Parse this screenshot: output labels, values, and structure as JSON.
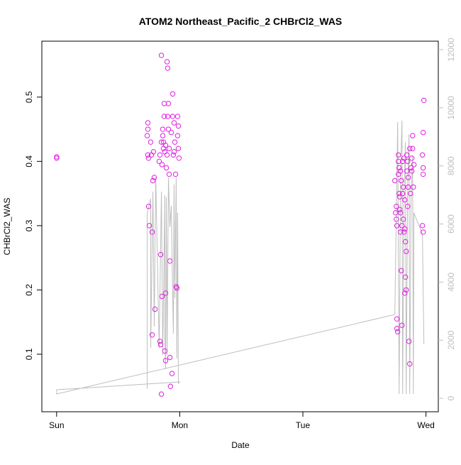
{
  "chart_data": {
    "type": "scatter",
    "title": "ATOM2 Northeast_Pacific_2 CHBrCl2_WAS",
    "xlabel": "Date",
    "ylabel": "CHBrCl2_WAS",
    "xlim": [
      -0.12,
      3.1
    ],
    "ylim": [
      0.0105,
      0.587
    ],
    "y2lim": [
      -464,
      12293
    ],
    "xticks": [
      {
        "value": 0,
        "label": "Sun"
      },
      {
        "value": 1,
        "label": "Mon"
      },
      {
        "value": 2,
        "label": "Tue"
      },
      {
        "value": 3,
        "label": "Wed"
      }
    ],
    "yticks": [
      0.1,
      0.2,
      0.3,
      0.4,
      0.5
    ],
    "y2ticks": [
      0,
      2000,
      4000,
      6000,
      8000,
      10000,
      12000
    ],
    "y2color": "#bebebe",
    "series": [
      {
        "color": "#e020e0",
        "x": [
          0,
          0,
          0.741,
          0.741,
          0.736,
          0.741,
          0.747,
          0.747,
          0.753,
          0.764,
          0.77,
          0.776,
          0.776,
          0.782,
          0.787,
          0.793,
          0.799,
          0.839,
          0.845,
          0.851,
          0.851,
          0.856,
          0.862,
          0.862,
          0.868,
          0.868,
          0.874,
          0.874,
          0.879,
          0.879,
          0.885,
          0.885,
          0.891,
          0.897,
          0.897,
          0.902,
          0.902,
          0.908,
          0.908,
          0.914,
          0.914,
          0.92,
          0.92,
          0.925,
          0.931,
          0.937,
          0.943,
          0.943,
          0.948,
          0.954,
          0.954,
          0.96,
          0.966,
          0.971,
          0.977,
          0.983,
          0.983,
          0.989,
          0.989,
          0.994,
          0.845,
          0.839,
          0.851,
          0.856,
          0.833,
          0.885,
          2.747,
          2.753,
          2.759,
          2.764,
          2.759,
          2.764,
          2.764,
          2.77,
          2.776,
          2.776,
          2.782,
          2.782,
          2.787,
          2.787,
          2.793,
          2.793,
          2.799,
          2.799,
          2.805,
          2.805,
          2.81,
          2.816,
          2.816,
          2.822,
          2.822,
          2.828,
          2.828,
          2.833,
          2.833,
          2.839,
          2.839,
          2.845,
          2.845,
          2.851,
          2.856,
          2.856,
          2.862,
          2.868,
          2.868,
          2.874,
          2.879,
          2.885,
          2.885,
          2.891,
          2.891,
          2.897,
          2.902,
          2.971,
          2.971,
          2.977,
          2.977,
          2.977,
          2.983,
          2.977,
          2.776,
          2.793,
          2.81,
          2.828,
          2.851
        ],
        "values": [
          0.407,
          0.405,
          0.46,
          0.45,
          0.44,
          0.41,
          0.405,
          0.33,
          0.3,
          0.43,
          0.41,
          0.29,
          0.13,
          0.37,
          0.415,
          0.375,
          0.17,
          0.12,
          0.255,
          0.038,
          0.565,
          0.19,
          0.45,
          0.44,
          0.43,
          0.42,
          0.49,
          0.47,
          0.415,
          0.105,
          0.09,
          0.195,
          0.39,
          0.555,
          0.41,
          0.545,
          0.47,
          0.49,
          0.45,
          0.38,
          0.42,
          0.095,
          0.245,
          0.05,
          0.445,
          0.07,
          0.47,
          0.505,
          0.41,
          0.415,
          0.46,
          0.43,
          0.38,
          0.205,
          0.203,
          0.44,
          0.47,
          0.455,
          0.42,
          0.405,
          0.115,
          0.41,
          0.43,
          0.395,
          0.4,
          0.425,
          0.37,
          0.32,
          0.31,
          0.3,
          0.33,
          0.155,
          0.14,
          0.135,
          0.41,
          0.4,
          0.39,
          0.35,
          0.345,
          0.325,
          0.32,
          0.29,
          0.23,
          0.37,
          0.3,
          0.145,
          0.4,
          0.36,
          0.31,
          0.405,
          0.29,
          0.295,
          0.195,
          0.275,
          0.22,
          0.26,
          0.2,
          0.41,
          0.385,
          0.4,
          0.375,
          0.36,
          0.12,
          0.42,
          0.085,
          0.35,
          0.39,
          0.385,
          0.405,
          0.42,
          0.44,
          0.36,
          0.395,
          0.41,
          0.3,
          0.39,
          0.38,
          0.445,
          0.495,
          0.29,
          0.38,
          0.385,
          0.35,
          0.34,
          0.33
        ]
      },
      {
        "color": "#bebebe",
        "axis": "y2",
        "x": [
          0.736,
          0.736,
          0.764,
          0.764,
          0.782,
          0.793,
          0.805,
          0.833,
          0.851,
          0.862,
          0.879,
          0.879,
          0.885,
          0.891,
          0.897,
          0.908,
          0.92,
          0.931,
          0.943,
          0.948,
          0.954,
          0.96,
          0.971,
          0.977,
          0.983,
          0.989,
          1.0,
          0,
          0,
          2.747,
          2.759,
          2.77,
          2.782,
          2.793,
          2.805,
          2.81,
          2.822,
          2.833,
          2.839,
          2.851,
          2.862,
          2.868,
          2.879,
          2.891,
          2.897,
          2.902,
          2.971,
          2.983
        ],
        "values": [
          318,
          6381,
          6870,
          1736,
          7115,
          2469,
          7604,
          1736,
          7115,
          1491,
          6993,
          1980,
          1002,
          6919,
          1491,
          7604,
          5893,
          6626,
          3447,
          2225,
          7359,
          3447,
          7604,
          1369,
          6381,
          513,
          562,
          293,
          147,
          2885,
          6381,
          9511,
          147,
          7604,
          9560,
          147,
          7115,
          8826,
          147,
          7359,
          9071,
          147,
          6870,
          8337,
          147,
          6381,
          5648,
          1858
        ]
      }
    ]
  }
}
